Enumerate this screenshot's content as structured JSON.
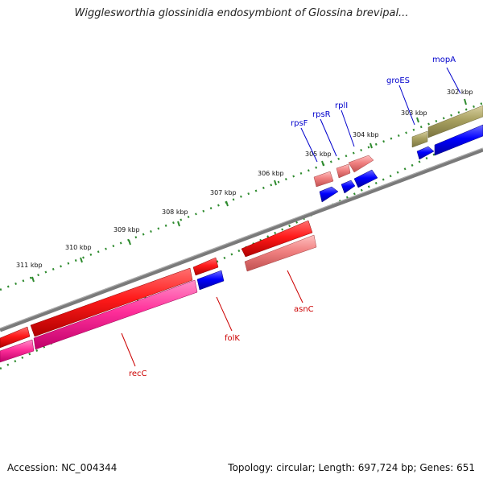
{
  "title": "Wigglesworthia glossinidia endosymbiont of Glossina brevipal...",
  "footer": {
    "accession": "Accession: NC_004344",
    "topology": "Topology: circular; Length: 697,724 bp; Genes: 651"
  },
  "ticks": [
    "302 kbp",
    "303 kbp",
    "304 kbp",
    "305 kbp",
    "306 kbp",
    "307 kbp",
    "308 kbp",
    "309 kbp",
    "310 kbp",
    "311 kbp"
  ],
  "genes": {
    "forward": [
      "mopA",
      "groES",
      "rplI",
      "rpsR",
      "rpsF"
    ],
    "reverse": [
      "asnC",
      "folK",
      "recC"
    ]
  },
  "colors": {
    "backbone": "#7a7a7a",
    "tick_dots": "#2e8b2e",
    "forward_label": "#0000cc",
    "reverse_label": "#cc0000",
    "red_feature": "#ff1a1a",
    "salmon_feature": "#f08080",
    "blue_feature": "#0000ff",
    "pink_feature": "#ff2f9a",
    "olive_feature": "#a8a060"
  }
}
